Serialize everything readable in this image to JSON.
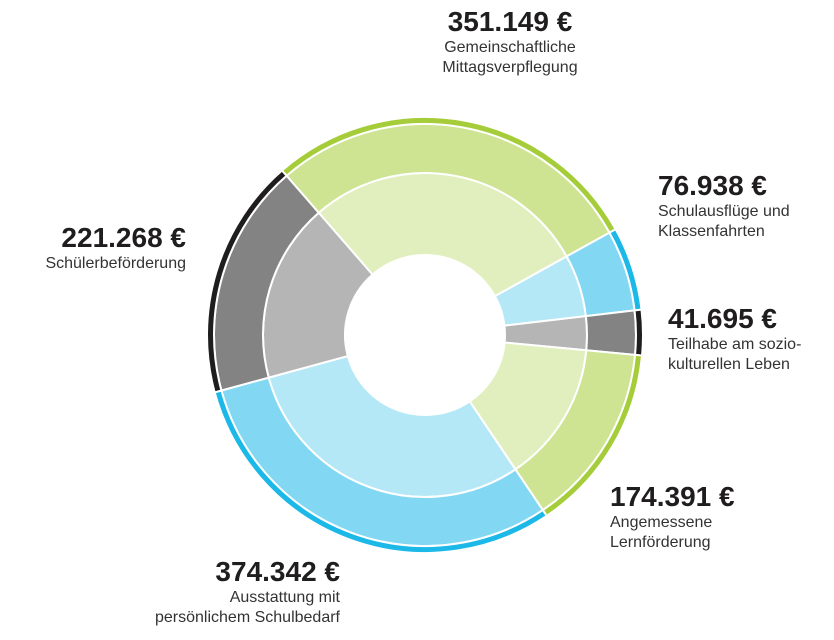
{
  "chart_data": {
    "type": "donut",
    "categories": [
      "Gemeinschaftliche\nMittagsverpflegung",
      "Schulausflüge und\nKlassenfahrten",
      "Teilhabe am sozio-\nkulturellen Leben",
      "Angemessene\nLernförderung",
      "Ausstattung mit\npersönlichem Schulbedarf",
      "Schülerbeförderung"
    ],
    "values": [
      351149,
      76938,
      41695,
      174391,
      374342,
      221268
    ],
    "value_labels": [
      "351.149 €",
      "76.938 €",
      "41.695 €",
      "174.391 €",
      "374.342 €",
      "221.268 €"
    ],
    "colors": [
      "#a5cd39",
      "#1bb8e8",
      "#1f1d1e",
      "#a5cd39",
      "#1bb8e8",
      "#1f1d1e"
    ]
  }
}
